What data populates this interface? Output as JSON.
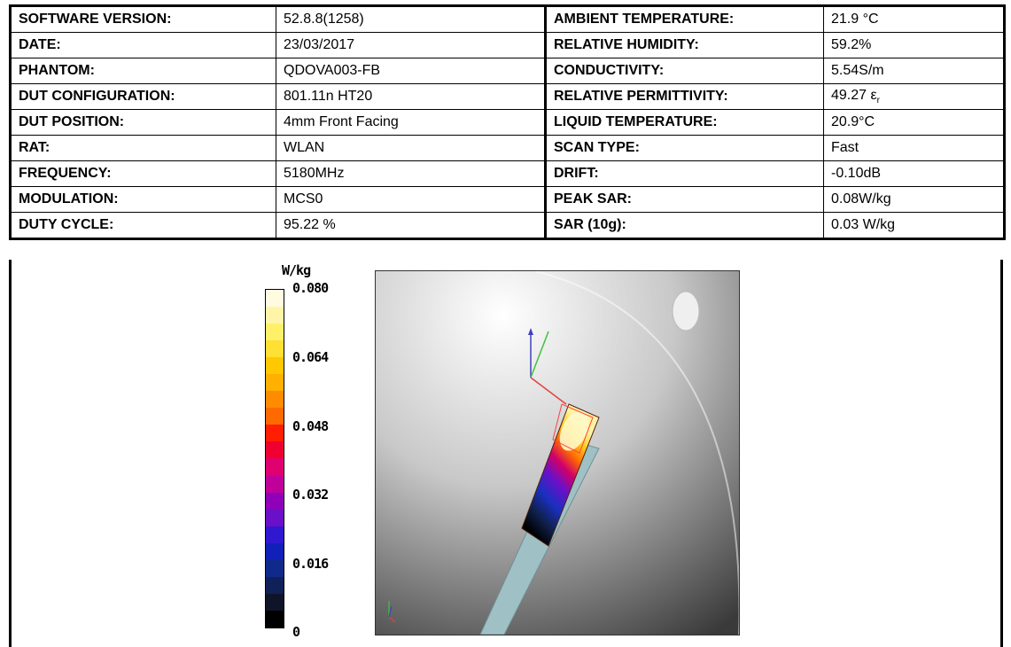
{
  "table": {
    "rows": [
      {
        "l1": "SOFTWARE VERSION:",
        "v1": "52.8.8(1258)",
        "l2": "AMBIENT TEMPERATURE:",
        "v2": "21.9 °C"
      },
      {
        "l1": "DATE:",
        "v1": "23/03/2017",
        "l2": "RELATIVE HUMIDITY:",
        "v2": "59.2%"
      },
      {
        "l1": "PHANTOM:",
        "v1": "QDOVA003-FB",
        "l2": "CONDUCTIVITY:",
        "v2": "5.54S/m"
      },
      {
        "l1": "DUT CONFIGURATION:",
        "v1": "801.11n  HT20",
        "l2": "RELATIVE PERMITTIVITY:",
        "v2": "49.27 ε",
        "v2_sub": "r"
      },
      {
        "l1": "DUT POSITION:",
        "v1": "4mm Front Facing",
        "l2": "LIQUID TEMPERATURE:",
        "v2": "20.9°C"
      },
      {
        "l1": "RAT:",
        "v1": "WLAN",
        "l2": "SCAN TYPE:",
        "v2": "Fast"
      },
      {
        "l1": "FREQUENCY:",
        "v1": "5180MHz",
        "l2": "DRIFT:",
        "v2": "-0.10dB"
      },
      {
        "l1": "MODULATION:",
        "v1": "MCS0",
        "l2": "PEAK SAR:",
        "v2": "0.08W/kg"
      },
      {
        "l1": "DUTY CYCLE:",
        "v1": "95.22 %",
        "l2": "SAR (10g):",
        "v2": "0.03 W/kg"
      }
    ]
  },
  "colorbar": {
    "unit": "W/kg",
    "ticks": [
      "0.080",
      "0.064",
      "0.048",
      "0.032",
      "0.016",
      "0"
    ],
    "colors": [
      "#fffbe0",
      "#fff5a8",
      "#fff06a",
      "#ffe033",
      "#ffc800",
      "#ffb000",
      "#ff8c00",
      "#ff6a00",
      "#ff1e00",
      "#f00030",
      "#e00070",
      "#c0009a",
      "#9000b8",
      "#6a10c8",
      "#3018d0",
      "#1020b8",
      "#102a8a",
      "#102058",
      "#101428",
      "#000000"
    ]
  }
}
